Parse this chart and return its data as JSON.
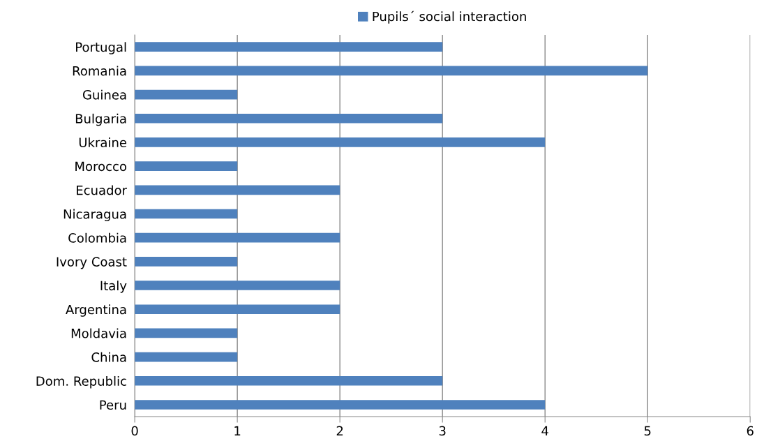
{
  "chart_data": {
    "type": "bar",
    "orientation": "horizontal",
    "categories": [
      "Portugal",
      "Romania",
      "Guinea",
      "Bulgaria",
      "Ukraine",
      "Morocco",
      "Ecuador",
      "Nicaragua",
      "Colombia",
      "Ivory Coast",
      "Italy",
      "Argentina",
      "Moldavia",
      "China",
      "Dom. Republic",
      "Peru"
    ],
    "series": [
      {
        "name": "Pupils´ social interaction",
        "color": "#4f81bd",
        "values": [
          3,
          5,
          1,
          3,
          4,
          1,
          2,
          1,
          2,
          1,
          2,
          2,
          1,
          1,
          3,
          4
        ]
      }
    ],
    "xlim": [
      0,
      6
    ],
    "xticks": [
      0,
      1,
      2,
      3,
      4,
      5,
      6
    ],
    "grid": "x",
    "legend": "top"
  }
}
